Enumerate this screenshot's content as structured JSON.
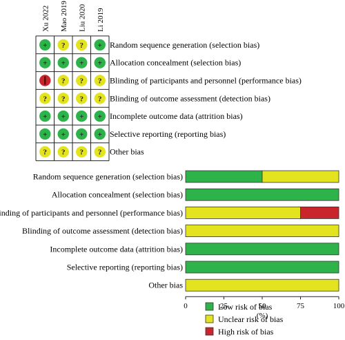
{
  "colors": {
    "low": "#2db34a",
    "unclear": "#e3e320",
    "high": "#c8262c",
    "grid_line": "#222222",
    "symbol_text": "#1a1a1a"
  },
  "chart_data": [
    {
      "type": "table",
      "studies": [
        "Xu 2022",
        "Mao 2019",
        "Liu 2020",
        "Li 2019"
      ],
      "domains": [
        "Random sequence generation (selection bias)",
        "Allocation concealment (selection bias)",
        "Blinding of participants and personnel (performance bias)",
        "Blinding of outcome assessment (detection bias)",
        "Incomplete outcome data (attrition bias)",
        "Selective reporting (reporting bias)",
        "Other bias"
      ],
      "judgements": [
        [
          "low",
          "unclear",
          "unclear",
          "low"
        ],
        [
          "low",
          "low",
          "low",
          "low"
        ],
        [
          "high",
          "unclear",
          "unclear",
          "unclear"
        ],
        [
          "unclear",
          "unclear",
          "unclear",
          "unclear"
        ],
        [
          "low",
          "low",
          "low",
          "low"
        ],
        [
          "low",
          "low",
          "low",
          "low"
        ],
        [
          "unclear",
          "unclear",
          "unclear",
          "unclear"
        ]
      ],
      "symbols": {
        "low": "+",
        "unclear": "?",
        "high": "-"
      }
    },
    {
      "type": "bar",
      "orientation": "horizontal",
      "stacked": true,
      "categories": [
        "Random sequence generation (selection bias)",
        "Allocation concealment (selection bias)",
        "Blinding of participants and personnel (performance bias)",
        "Blinding of outcome assessment (detection bias)",
        "Incomplete outcome data (attrition bias)",
        "Selective reporting (reporting bias)",
        "Other bias"
      ],
      "series": [
        {
          "name": "Low risk of bias",
          "key": "low",
          "values": [
            50,
            100,
            0,
            0,
            100,
            100,
            0
          ]
        },
        {
          "name": "Unclear risk of bias",
          "key": "unclear",
          "values": [
            50,
            0,
            75,
            100,
            0,
            0,
            100
          ]
        },
        {
          "name": "High risk of bias",
          "key": "high",
          "values": [
            0,
            0,
            25,
            0,
            0,
            0,
            0
          ]
        }
      ],
      "xlim": [
        0,
        100
      ],
      "xticks": [
        0,
        25,
        50,
        75,
        100
      ],
      "xlabel": "(%)",
      "legend": "bottom"
    }
  ]
}
